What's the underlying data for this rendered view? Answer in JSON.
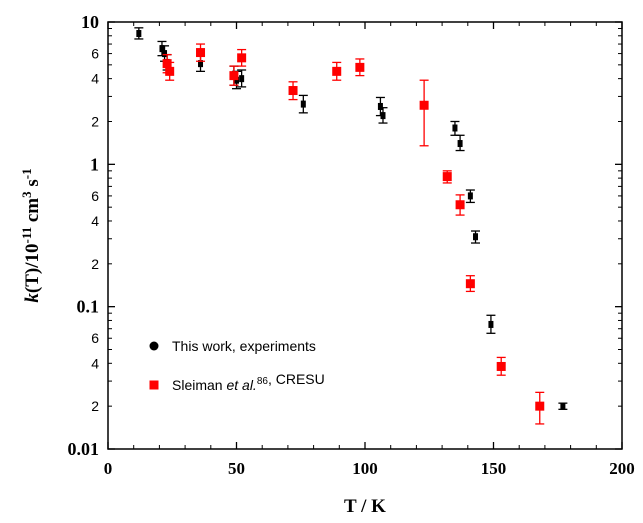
{
  "chart_data": {
    "type": "scatter",
    "xlabel": "T / K",
    "ylabel": {
      "base": "k(T)/10",
      "exponent": "-11",
      "unit": " cm",
      "unit_exponent": "3",
      "tail": " s",
      "tail_exponent": "-1"
    },
    "xlim": [
      0,
      200
    ],
    "ylim": [
      0.01,
      10
    ],
    "yscale": "log",
    "grid": false,
    "legend_position": "bottom-left",
    "x_ticks": [
      0,
      50,
      100,
      150,
      200
    ],
    "y_major_ticks": [
      {
        "value": 10,
        "label": "10"
      },
      {
        "value": 1,
        "label": "1"
      },
      {
        "value": 0.1,
        "label": "0.1"
      },
      {
        "value": 0.01,
        "label": "0.01"
      }
    ],
    "y_minor_ticks": [
      {
        "value": 6,
        "label": "6"
      },
      {
        "value": 4,
        "label": "4"
      },
      {
        "value": 2,
        "label": "2"
      },
      {
        "value": 0.6,
        "label": "6"
      },
      {
        "value": 0.4,
        "label": "4"
      },
      {
        "value": 0.2,
        "label": "2"
      },
      {
        "value": 0.06,
        "label": "6"
      },
      {
        "value": 0.04,
        "label": "4"
      },
      {
        "value": 0.02,
        "label": "2"
      }
    ],
    "series": [
      {
        "name": "This work, experiments",
        "color": "#000000",
        "marker": "circle",
        "points": [
          {
            "x": 12,
            "y": 8.3,
            "lo": 7.6,
            "hi": 9.1
          },
          {
            "x": 21,
            "y": 6.5,
            "lo": 5.8,
            "hi": 7.3
          },
          {
            "x": 22,
            "y": 6.0,
            "lo": 5.3,
            "hi": 6.8
          },
          {
            "x": 23,
            "y": 5.2,
            "lo": 4.6,
            "hi": 5.9
          },
          {
            "x": 36,
            "y": 5.1,
            "lo": 4.5,
            "hi": 5.8
          },
          {
            "x": 49,
            "y": 4.2,
            "lo": 3.6,
            "hi": 4.9
          },
          {
            "x": 50,
            "y": 3.9,
            "lo": 3.4,
            "hi": 4.5
          },
          {
            "x": 52,
            "y": 4.0,
            "lo": 3.5,
            "hi": 4.6
          },
          {
            "x": 76,
            "y": 2.65,
            "lo": 2.3,
            "hi": 3.05
          },
          {
            "x": 106,
            "y": 2.55,
            "lo": 2.2,
            "hi": 2.95
          },
          {
            "x": 107,
            "y": 2.2,
            "lo": 1.95,
            "hi": 2.5
          },
          {
            "x": 135,
            "y": 1.8,
            "lo": 1.6,
            "hi": 2.0
          },
          {
            "x": 137,
            "y": 1.4,
            "lo": 1.25,
            "hi": 1.6
          },
          {
            "x": 141,
            "y": 0.6,
            "lo": 0.54,
            "hi": 0.66
          },
          {
            "x": 143,
            "y": 0.31,
            "lo": 0.28,
            "hi": 0.34
          },
          {
            "x": 149,
            "y": 0.075,
            "lo": 0.065,
            "hi": 0.087
          },
          {
            "x": 177,
            "y": 0.02,
            "lo": 0.019,
            "hi": 0.021
          }
        ]
      },
      {
        "name": "Sleiman et al., CRESU",
        "color": "#ff0000",
        "marker": "square",
        "points": [
          {
            "x": 23,
            "y": 5.1,
            "lo": 4.4,
            "hi": 5.9
          },
          {
            "x": 24,
            "y": 4.5,
            "lo": 3.9,
            "hi": 5.2
          },
          {
            "x": 36,
            "y": 6.1,
            "lo": 5.3,
            "hi": 7.0
          },
          {
            "x": 49,
            "y": 4.2,
            "lo": 3.6,
            "hi": 4.9
          },
          {
            "x": 52,
            "y": 5.6,
            "lo": 4.9,
            "hi": 6.4
          },
          {
            "x": 72,
            "y": 3.3,
            "lo": 2.85,
            "hi": 3.8
          },
          {
            "x": 89,
            "y": 4.5,
            "lo": 3.9,
            "hi": 5.2
          },
          {
            "x": 98,
            "y": 4.8,
            "lo": 4.2,
            "hi": 5.5
          },
          {
            "x": 123,
            "y": 2.6,
            "lo": 1.35,
            "hi": 3.9
          },
          {
            "x": 132,
            "y": 0.82,
            "lo": 0.74,
            "hi": 0.9
          },
          {
            "x": 137,
            "y": 0.52,
            "lo": 0.44,
            "hi": 0.61
          },
          {
            "x": 141,
            "y": 0.145,
            "lo": 0.128,
            "hi": 0.165
          },
          {
            "x": 153,
            "y": 0.038,
            "lo": 0.033,
            "hi": 0.044
          },
          {
            "x": 168,
            "y": 0.02,
            "lo": 0.015,
            "hi": 0.025
          }
        ]
      }
    ],
    "legend": [
      {
        "marker": "circle",
        "color": "#000000",
        "parts": [
          {
            "text": "This work, experiments"
          }
        ]
      },
      {
        "marker": "square",
        "color": "#ff0000",
        "parts": [
          {
            "text": "Sleiman "
          },
          {
            "text": "et al.",
            "style": "italic"
          },
          {
            "text": "86",
            "style": "superscript"
          },
          {
            "text": ", CRESU"
          }
        ]
      }
    ]
  }
}
